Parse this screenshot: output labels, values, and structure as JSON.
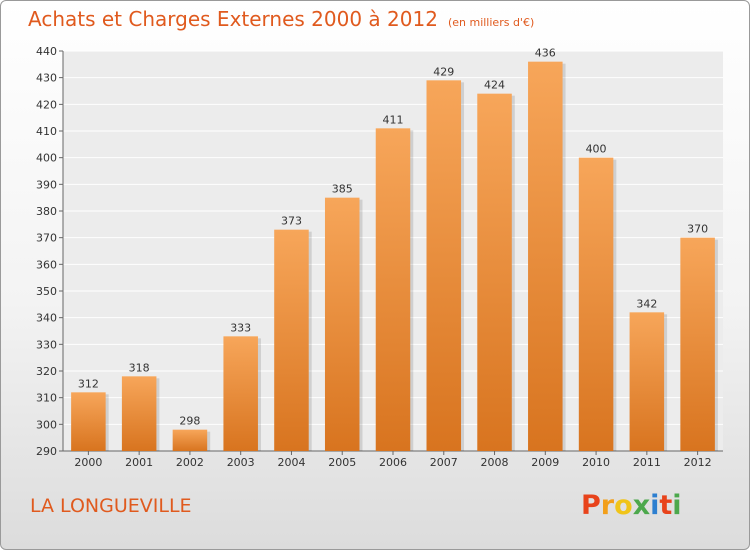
{
  "chart_data": {
    "type": "bar",
    "title": "Achats et Charges Externes 2000 à 2012",
    "subtitle": "(en milliers d'€)",
    "categories": [
      "2000",
      "2001",
      "2002",
      "2003",
      "2004",
      "2005",
      "2006",
      "2007",
      "2008",
      "2009",
      "2010",
      "2011",
      "2012"
    ],
    "values": [
      312,
      318,
      298,
      333,
      373,
      385,
      411,
      429,
      424,
      436,
      400,
      342,
      370
    ],
    "ylim": [
      290,
      440
    ],
    "yticks": [
      290,
      300,
      310,
      320,
      330,
      340,
      350,
      360,
      370,
      380,
      390,
      400,
      410,
      420,
      430,
      440
    ],
    "grid": true,
    "bar_color_top": "#f7a65a",
    "bar_color_bottom": "#d8741f"
  },
  "footer": {
    "location": "LA LONGUEVILLE",
    "logo_letters": [
      "P",
      "r",
      "o",
      "x",
      "i",
      "t",
      "i"
    ],
    "logo_colors": [
      "#e8431b",
      "#f29f1a",
      "#f0c419",
      "#4ca84c",
      "#2d7fd0",
      "#e8431b",
      "#4ca84c"
    ]
  }
}
